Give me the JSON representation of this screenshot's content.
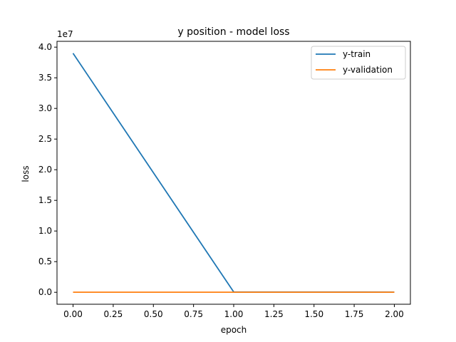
{
  "chart_data": {
    "type": "line",
    "title": "y position - model loss",
    "xlabel": "epoch",
    "ylabel": "loss",
    "y_multiplier": "1e7",
    "xlim": [
      -0.1,
      2.1
    ],
    "ylim": [
      -1.95,
      40.95
    ],
    "x_ticks": [
      0.0,
      0.25,
      0.5,
      0.75,
      1.0,
      1.25,
      1.5,
      1.75,
      2.0
    ],
    "x_tick_labels": [
      "0.00",
      "0.25",
      "0.50",
      "0.75",
      "1.00",
      "1.25",
      "1.50",
      "1.75",
      "2.00"
    ],
    "y_ticks": [
      0.0,
      5.0,
      10.0,
      15.0,
      20.0,
      25.0,
      30.0,
      35.0,
      40.0
    ],
    "y_tick_labels": [
      "0.0",
      "0.5",
      "1.0",
      "1.5",
      "2.0",
      "2.5",
      "3.0",
      "3.5",
      "4.0"
    ],
    "grid": false,
    "legend_position": "top-right",
    "series": [
      {
        "name": "y-train",
        "color": "#1f77b4",
        "x": [
          0,
          1,
          2
        ],
        "y": [
          39.0,
          0.05,
          0.03
        ]
      },
      {
        "name": "y-validation",
        "color": "#ff7f0e",
        "x": [
          0,
          1,
          2
        ],
        "y": [
          0.02,
          0.02,
          0.02
        ]
      }
    ]
  }
}
